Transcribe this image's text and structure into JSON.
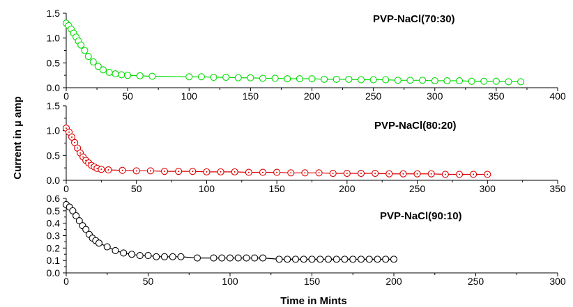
{
  "ylabel": "Current in µ amp",
  "xlabel": "Time in Mints",
  "chart_data": [
    {
      "type": "line",
      "title": "PVP-NaCl(70:30)",
      "color": "#00dd00",
      "marker": "open-circle",
      "xlim": [
        0,
        400
      ],
      "ylim": [
        0,
        1.5
      ],
      "xticks": [
        0,
        50,
        100,
        150,
        200,
        250,
        300,
        350,
        400
      ],
      "yticks": [
        0.0,
        0.5,
        1.0,
        1.5
      ],
      "ytick_labels": [
        "0.0",
        "0.5",
        "1.0",
        "1.5"
      ],
      "x": [
        0,
        2,
        4,
        6,
        8,
        10,
        12,
        15,
        18,
        22,
        26,
        30,
        35,
        40,
        45,
        50,
        60,
        70,
        100,
        110,
        120,
        130,
        140,
        150,
        160,
        170,
        180,
        190,
        200,
        210,
        220,
        230,
        240,
        250,
        260,
        270,
        280,
        290,
        300,
        310,
        320,
        330,
        340,
        350,
        360,
        370
      ],
      "y": [
        1.3,
        1.25,
        1.18,
        1.1,
        1.02,
        0.94,
        0.86,
        0.75,
        0.63,
        0.52,
        0.43,
        0.36,
        0.31,
        0.28,
        0.26,
        0.25,
        0.24,
        0.23,
        0.22,
        0.22,
        0.21,
        0.21,
        0.2,
        0.2,
        0.19,
        0.19,
        0.18,
        0.18,
        0.18,
        0.17,
        0.17,
        0.17,
        0.16,
        0.16,
        0.16,
        0.15,
        0.15,
        0.15,
        0.14,
        0.14,
        0.14,
        0.13,
        0.13,
        0.13,
        0.12,
        0.12
      ]
    },
    {
      "type": "line",
      "title": "PVP-NaCl(80:20)",
      "color": "#dd0000",
      "marker": "open-circle-dot",
      "xlim": [
        0,
        350
      ],
      "ylim": [
        0,
        1.5
      ],
      "xticks": [
        0,
        50,
        100,
        150,
        200,
        250,
        300,
        350
      ],
      "yticks": [
        0.0,
        0.5,
        1.0,
        1.5
      ],
      "ytick_labels": [
        "0.0",
        "0.5",
        "1.0",
        "1.5"
      ],
      "x": [
        0,
        2,
        4,
        6,
        8,
        10,
        12,
        14,
        16,
        18,
        20,
        22,
        25,
        30,
        40,
        50,
        60,
        70,
        80,
        90,
        100,
        110,
        120,
        130,
        140,
        150,
        160,
        170,
        180,
        190,
        200,
        210,
        220,
        230,
        240,
        250,
        260,
        270,
        280,
        290,
        300
      ],
      "y": [
        1.05,
        0.97,
        0.87,
        0.76,
        0.65,
        0.55,
        0.47,
        0.4,
        0.35,
        0.3,
        0.27,
        0.24,
        0.22,
        0.21,
        0.2,
        0.19,
        0.19,
        0.18,
        0.18,
        0.18,
        0.17,
        0.17,
        0.17,
        0.16,
        0.16,
        0.16,
        0.15,
        0.15,
        0.15,
        0.14,
        0.14,
        0.14,
        0.14,
        0.13,
        0.13,
        0.13,
        0.13,
        0.12,
        0.12,
        0.12,
        0.12
      ]
    },
    {
      "type": "line",
      "title": "PVP-NaCl(90:10)",
      "color": "#000000",
      "marker": "open-circle",
      "xlim": [
        0,
        300
      ],
      "ylim": [
        0,
        0.6
      ],
      "xticks": [
        0,
        50,
        100,
        150,
        200,
        250,
        300
      ],
      "yticks": [
        0.0,
        0.1,
        0.2,
        0.3,
        0.4,
        0.5,
        0.6
      ],
      "ytick_labels": [
        "0.0",
        "0.1",
        "0.2",
        "0.3",
        "0.4",
        "0.5",
        "0.6"
      ],
      "x": [
        0,
        2,
        4,
        6,
        8,
        10,
        12,
        14,
        16,
        18,
        20,
        25,
        30,
        35,
        40,
        45,
        50,
        55,
        60,
        65,
        70,
        80,
        90,
        95,
        100,
        105,
        110,
        115,
        120,
        130,
        135,
        140,
        145,
        150,
        155,
        160,
        165,
        170,
        175,
        180,
        185,
        190,
        195,
        200
      ],
      "y": [
        0.55,
        0.53,
        0.5,
        0.46,
        0.42,
        0.38,
        0.35,
        0.31,
        0.28,
        0.26,
        0.24,
        0.21,
        0.18,
        0.16,
        0.15,
        0.14,
        0.14,
        0.13,
        0.13,
        0.13,
        0.13,
        0.12,
        0.12,
        0.12,
        0.12,
        0.12,
        0.12,
        0.12,
        0.12,
        0.11,
        0.11,
        0.11,
        0.11,
        0.11,
        0.11,
        0.11,
        0.11,
        0.11,
        0.11,
        0.11,
        0.11,
        0.11,
        0.11,
        0.11
      ]
    }
  ]
}
